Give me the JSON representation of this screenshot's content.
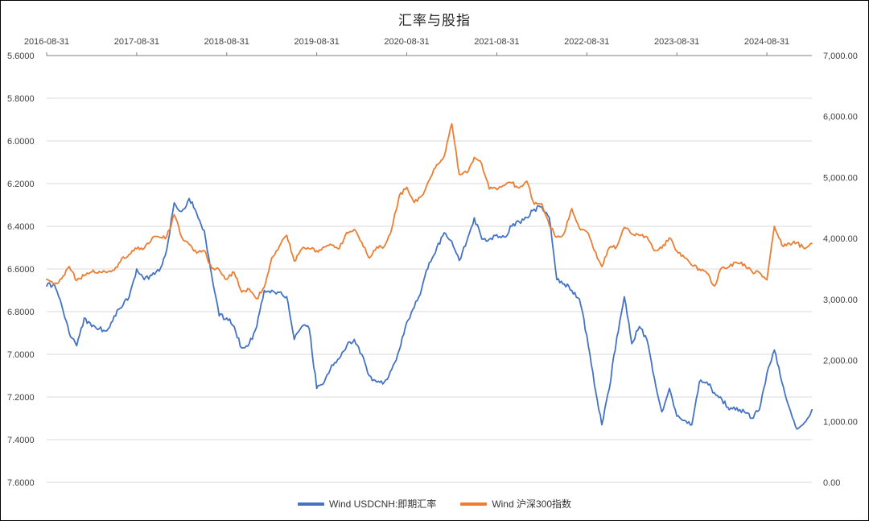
{
  "title": "汇率与股指",
  "chart_data": {
    "type": "line",
    "title": "汇率与股指",
    "grid": true,
    "legend_position": "bottom",
    "x_axis": {
      "position": "top",
      "start_month": "2016-08",
      "end_month": "2025-02",
      "interval": "monthly",
      "tick_labels": [
        "2016-08-31",
        "2017-08-31",
        "2018-08-31",
        "2019-08-31",
        "2020-08-31",
        "2021-08-31",
        "2022-08-31",
        "2023-08-31",
        "2024-08-31"
      ],
      "tick_month_indices": [
        0,
        12,
        24,
        36,
        48,
        60,
        72,
        84,
        96
      ]
    },
    "left_axis": {
      "min": 5.6,
      "max": 7.6,
      "reversed": true,
      "tick_labels": [
        "5.6000",
        "5.8000",
        "6.0000",
        "6.2000",
        "6.4000",
        "6.6000",
        "6.8000",
        "7.0000",
        "7.2000",
        "7.4000",
        "7.6000"
      ],
      "series": "Wind USDCNH:即期汇率"
    },
    "right_axis": {
      "min": 0,
      "max": 7000,
      "tick_labels": [
        "7,000.00",
        "6,000.00",
        "5,000.00",
        "4,000.00",
        "3,000.00",
        "2,000.00",
        "1,000.00",
        "0.00"
      ],
      "series": "Wind 沪深300指数"
    },
    "series": [
      {
        "name": "Wind USDCNH:即期汇率",
        "axis": "left",
        "color": "#4472C4",
        "values": [
          6.68,
          6.67,
          6.77,
          6.9,
          6.96,
          6.83,
          6.87,
          6.88,
          6.89,
          6.82,
          6.78,
          6.73,
          6.6,
          6.65,
          6.63,
          6.61,
          6.51,
          6.29,
          6.33,
          6.27,
          6.34,
          6.42,
          6.63,
          6.82,
          6.83,
          6.87,
          6.97,
          6.95,
          6.87,
          6.7,
          6.7,
          6.71,
          6.73,
          6.93,
          6.87,
          6.88,
          7.16,
          7.13,
          7.05,
          7.02,
          6.96,
          6.93,
          7.0,
          7.1,
          7.13,
          7.13,
          7.07,
          6.98,
          6.85,
          6.78,
          6.69,
          6.57,
          6.5,
          6.43,
          6.47,
          6.56,
          6.47,
          6.36,
          6.46,
          6.46,
          6.44,
          6.45,
          6.4,
          6.38,
          6.36,
          6.32,
          6.31,
          6.36,
          6.65,
          6.67,
          6.7,
          6.74,
          6.91,
          7.14,
          7.33,
          7.16,
          6.92,
          6.73,
          6.95,
          6.87,
          6.93,
          7.11,
          7.27,
          7.16,
          7.29,
          7.31,
          7.33,
          7.13,
          7.13,
          7.18,
          7.21,
          7.26,
          7.25,
          7.27,
          7.3,
          7.26,
          7.09,
          6.98,
          7.13,
          7.25,
          7.35,
          7.32,
          7.26
        ]
      },
      {
        "name": "Wind 沪深300指数",
        "axis": "right",
        "color": "#ED7D31",
        "values": [
          3330,
          3250,
          3340,
          3540,
          3310,
          3390,
          3450,
          3460,
          3440,
          3480,
          3670,
          3740,
          3830,
          3840,
          3990,
          4020,
          4030,
          4390,
          4020,
          3900,
          3760,
          3800,
          3510,
          3490,
          3330,
          3440,
          3120,
          3170,
          3010,
          3200,
          3680,
          3870,
          4050,
          3630,
          3830,
          3830,
          3800,
          3860,
          3890,
          3830,
          4100,
          4150,
          3940,
          3680,
          3860,
          3870,
          4160,
          4700,
          4840,
          4590,
          4700,
          4960,
          5210,
          5350,
          5880,
          5050,
          5080,
          5330,
          5220,
          4810,
          4800,
          4870,
          4910,
          4830,
          4940,
          4560,
          4570,
          4220,
          4020,
          4090,
          4490,
          4170,
          4110,
          3800,
          3540,
          3850,
          3870,
          4180,
          4070,
          4050,
          4030,
          3800,
          3840,
          4010,
          3790,
          3690,
          3560,
          3500,
          3430,
          3220,
          3520,
          3540,
          3600,
          3580,
          3460,
          3440,
          3320,
          4200,
          3890,
          3920,
          3930,
          3830,
          3920
        ]
      }
    ]
  }
}
